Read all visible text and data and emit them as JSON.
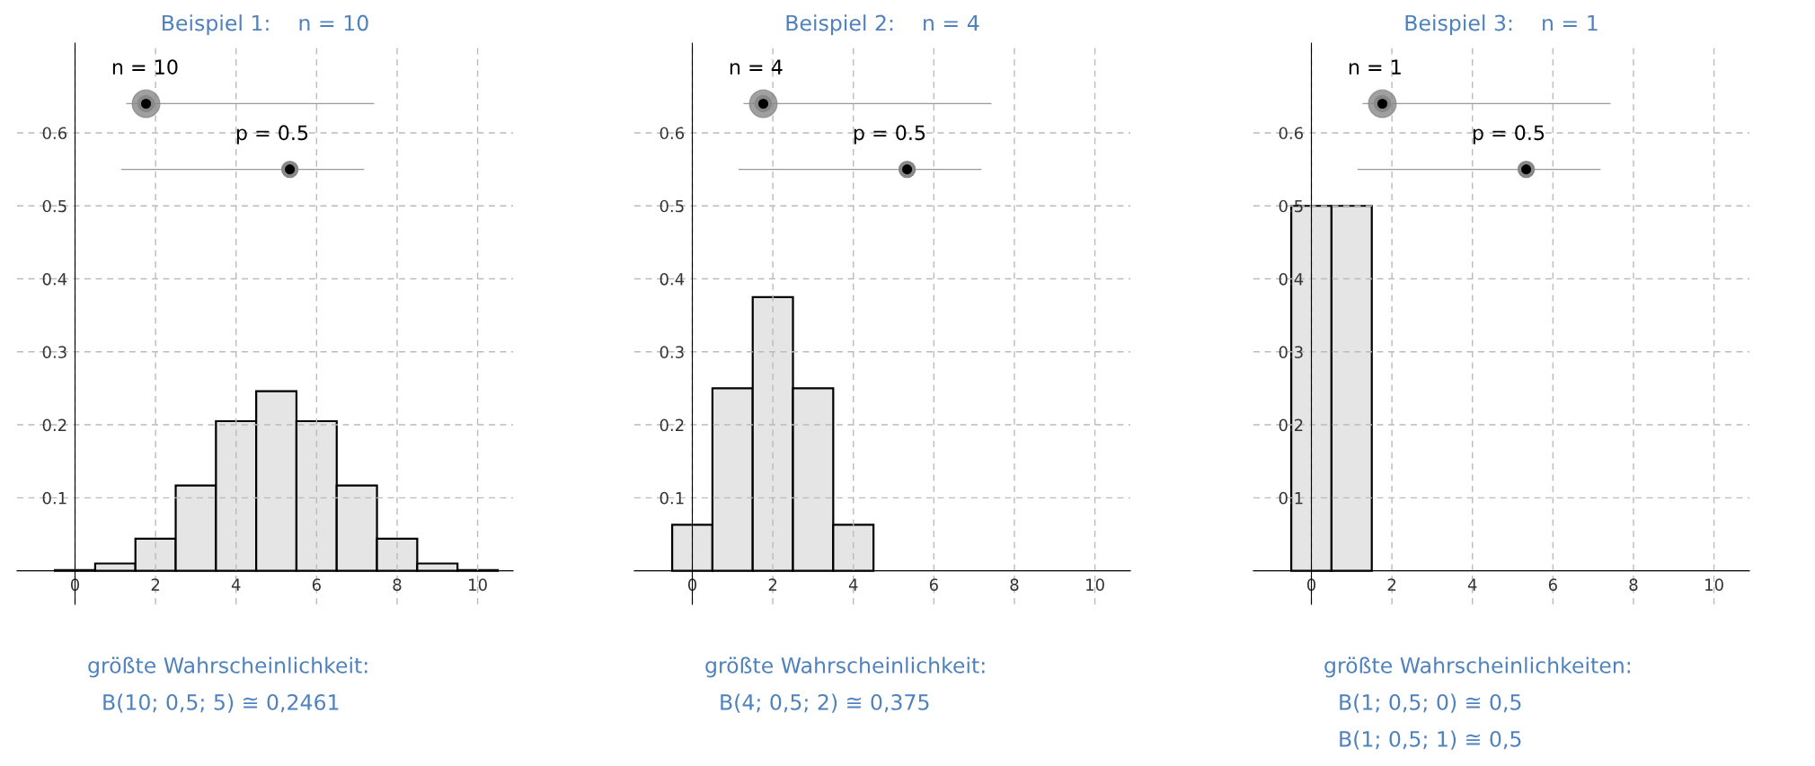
{
  "chart_data": [
    {
      "type": "histogram",
      "title": "Beispiel 1:    n = 10",
      "bins": [
        -0.5,
        0.5,
        1.5,
        2.5,
        3.5,
        4.5,
        5.5,
        6.5,
        7.5,
        8.5,
        9.5,
        10.5
      ],
      "values": [
        0.001,
        0.01,
        0.044,
        0.117,
        0.205,
        0.246,
        0.205,
        0.117,
        0.044,
        0.01,
        0.001
      ],
      "color": "#e5e5e5",
      "xlim": [
        -1.44,
        10.88
      ],
      "ylim": [
        -0.046,
        0.723
      ],
      "xticks": [
        0,
        2,
        4,
        6,
        8,
        10
      ],
      "yticks": [
        0.1,
        0.2,
        0.3,
        0.4,
        0.5,
        0.6
      ],
      "grid": true,
      "annotations": [
        "n = 10",
        "p = 0.5",
        "größte Wahrscheinlichkeit:",
        "B(10; 0,5; 5) ≅ 0,2461"
      ]
    },
    {
      "type": "histogram",
      "title": "Beispiel 2:    n = 4",
      "bins": [
        -0.5,
        0.5,
        1.5,
        2.5,
        3.5,
        4.5
      ],
      "values": [
        0.063,
        0.25,
        0.375,
        0.25,
        0.063
      ],
      "color": "#e5e5e5",
      "xlim": [
        -1.44,
        10.88
      ],
      "ylim": [
        -0.046,
        0.723
      ],
      "xticks": [
        0,
        2,
        4,
        6,
        8,
        10
      ],
      "yticks": [
        0.1,
        0.2,
        0.3,
        0.4,
        0.5,
        0.6
      ],
      "grid": true,
      "annotations": [
        "n = 4",
        "p = 0.5",
        "größte Wahrscheinlichkeit:",
        "B(4; 0,5; 2) ≅ 0,375"
      ]
    },
    {
      "type": "histogram",
      "title": "Beispiel 3:    n = 1",
      "bins": [
        -0.5,
        0.5,
        1.5
      ],
      "values": [
        0.5,
        0.5
      ],
      "color": "#e5e5e5",
      "xlim": [
        -1.44,
        10.88
      ],
      "ylim": [
        -0.046,
        0.723
      ],
      "xticks": [
        0,
        2,
        4,
        6,
        8,
        10
      ],
      "yticks": [
        0.1,
        0.2,
        0.3,
        0.4,
        0.5,
        0.6
      ],
      "grid": true,
      "annotations": [
        "n = 1",
        "p = 0.5",
        "größte Wahrscheinlichkeiten:",
        "B(1; 0,5; 0) ≅ 0,5",
        "B(1; 0,5; 1) ≅ 0,5"
      ]
    }
  ]
}
